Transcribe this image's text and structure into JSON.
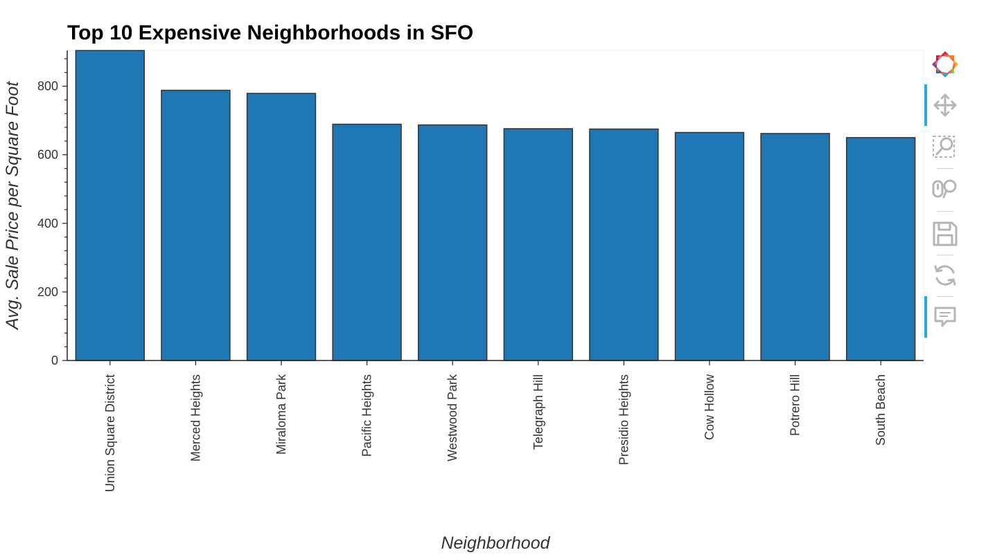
{
  "chart_data": {
    "type": "bar",
    "title": "Top 10 Expensive Neighborhoods in SFO",
    "xlabel": "Neighborhood",
    "ylabel": "Avg. Sale Price per Square Foot",
    "categories": [
      "Union Square District",
      "Merced Heights",
      "Miraloma Park",
      "Pacific Heights",
      "Westwood Park",
      "Telegraph Hill",
      "Presidio Heights",
      "Cow Hollow",
      "Potrero Hill",
      "South Beach"
    ],
    "values": [
      904,
      788,
      779,
      689,
      687,
      676,
      675,
      665,
      662,
      650
    ],
    "ylim": [
      0,
      904
    ],
    "yticks": [
      0,
      200,
      400,
      600,
      800
    ],
    "grid": false,
    "bar_color": "#1f77b4",
    "bar_edge_color": "#333333"
  },
  "toolbar": {
    "tools": [
      {
        "icon": "pan-icon",
        "active": true
      },
      {
        "icon": "box-zoom-icon",
        "active": false
      },
      {
        "icon": "wheel-zoom-icon",
        "active": false
      },
      {
        "icon": "save-icon",
        "active": false
      },
      {
        "icon": "reset-icon",
        "active": false
      },
      {
        "icon": "hover-icon",
        "active": true
      }
    ],
    "logo_icon": "bokeh-logo-icon",
    "icon_color": "#b5b5b5",
    "accent_color": "#26aae1"
  }
}
